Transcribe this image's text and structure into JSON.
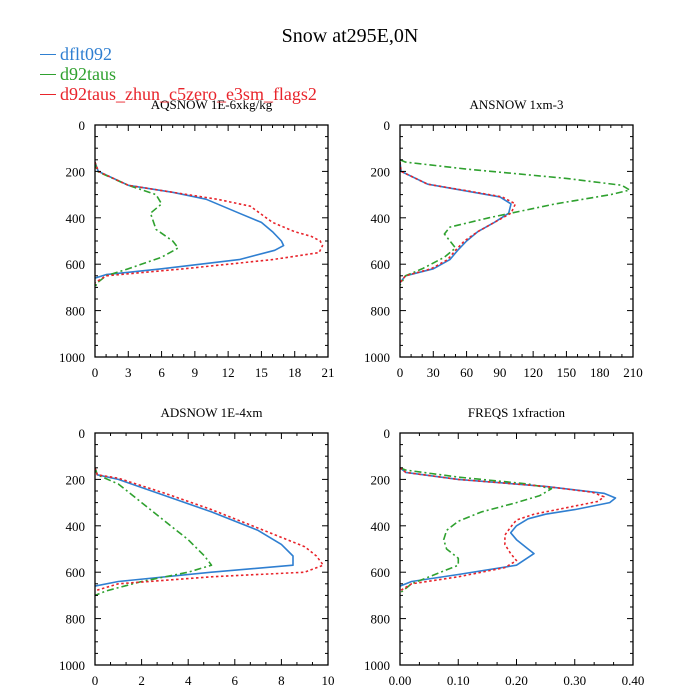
{
  "figure_title": "Snow at295E,0N",
  "colors": {
    "axis": "#000000",
    "s1": "#2f7fd1",
    "s2": "#2fa12f",
    "s3": "#e8242b"
  },
  "legend": [
    {
      "label": "dflt092",
      "color": "#2f7fd1"
    },
    {
      "label": "d92taus",
      "color": "#2fa12f"
    },
    {
      "label": "d92taus_zhun_c5zero_e3sm_flags2",
      "color": "#e8242b"
    }
  ],
  "chart_data": [
    {
      "type": "line",
      "title": "AQSNOW  1E-6xkg/kg",
      "xlim": [
        0,
        21
      ],
      "ylim": [
        0,
        1000
      ],
      "y_inverted": true,
      "xticks": [
        0,
        3,
        6,
        9,
        12,
        15,
        18,
        21
      ],
      "xtick_labels": [
        "0",
        "3",
        "6",
        "9",
        "12",
        "15",
        "18",
        "21"
      ],
      "yticks": [
        0,
        200,
        400,
        600,
        800,
        1000
      ],
      "ytick_labels": [
        "0",
        "200",
        "400",
        "600",
        "800",
        "1000"
      ],
      "series": [
        {
          "name": "dflt092",
          "style": "solid",
          "x": [
            0,
            0.3,
            3,
            7,
            10,
            13,
            15,
            16,
            16.8,
            17,
            16.2,
            13,
            6,
            1,
            0
          ],
          "y": [
            160,
            200,
            260,
            290,
            320,
            380,
            420,
            460,
            500,
            520,
            540,
            580,
            620,
            645,
            660
          ]
        },
        {
          "name": "d92taus",
          "style": "dashdot",
          "x": [
            0,
            0.2,
            3,
            5.5,
            6,
            5,
            5.5,
            7,
            7.5,
            6,
            3,
            1,
            0.2,
            0
          ],
          "y": [
            160,
            200,
            260,
            300,
            340,
            380,
            450,
            500,
            530,
            570,
            620,
            650,
            680,
            700
          ]
        },
        {
          "name": "d92taus_zhun_c5zero_e3sm_flags2",
          "style": "dotted",
          "x": [
            0,
            0.3,
            3,
            7,
            11,
            14,
            16,
            18,
            19.5,
            20.3,
            20.5,
            20.2,
            16,
            8,
            1,
            0
          ],
          "y": [
            160,
            200,
            260,
            290,
            320,
            350,
            420,
            460,
            480,
            500,
            520,
            550,
            580,
            620,
            650,
            680
          ]
        }
      ]
    },
    {
      "type": "line",
      "title": "ANSNOW  1xm-3",
      "xlim": [
        0,
        210
      ],
      "ylim": [
        0,
        1000
      ],
      "y_inverted": true,
      "xticks": [
        0,
        30,
        60,
        90,
        120,
        150,
        180,
        210
      ],
      "xtick_labels": [
        "0",
        "30",
        "60",
        "90",
        "120",
        "150",
        "180",
        "210"
      ],
      "yticks": [
        0,
        200,
        400,
        600,
        800,
        1000
      ],
      "ytick_labels": [
        "0",
        "200",
        "400",
        "600",
        "800",
        "1000"
      ],
      "series": [
        {
          "name": "dflt092",
          "style": "solid",
          "x": [
            0,
            1,
            25,
            60,
            90,
            100,
            98,
            85,
            70,
            60,
            52,
            45,
            30,
            5,
            0
          ],
          "y": [
            160,
            200,
            255,
            285,
            310,
            340,
            380,
            420,
            460,
            500,
            540,
            580,
            620,
            650,
            680
          ]
        },
        {
          "name": "d92taus",
          "style": "dashdot",
          "x": [
            0,
            5,
            60,
            150,
            200,
            207,
            190,
            140,
            80,
            45,
            40,
            50,
            40,
            20,
            5,
            0
          ],
          "y": [
            150,
            160,
            190,
            230,
            260,
            280,
            300,
            340,
            400,
            440,
            470,
            530,
            570,
            620,
            650,
            690
          ]
        },
        {
          "name": "d92taus_zhun_c5zero_e3sm_flags2",
          "style": "dotted",
          "x": [
            0,
            1,
            25,
            62,
            92,
            104,
            100,
            85,
            70,
            58,
            50,
            43,
            28,
            5,
            0
          ],
          "y": [
            160,
            200,
            255,
            285,
            310,
            340,
            380,
            420,
            460,
            500,
            540,
            580,
            620,
            650,
            680
          ]
        }
      ]
    },
    {
      "type": "line",
      "title": "ADSNOW  1E-4xm",
      "xlim": [
        0,
        10
      ],
      "ylim": [
        0,
        1000
      ],
      "y_inverted": true,
      "xticks": [
        0,
        2,
        4,
        6,
        8,
        10
      ],
      "xtick_labels": [
        "0",
        "2",
        "4",
        "6",
        "8",
        "10"
      ],
      "yticks": [
        0,
        200,
        400,
        600,
        800,
        1000
      ],
      "ytick_labels": [
        "0",
        "200",
        "400",
        "600",
        "800",
        "1000"
      ],
      "series": [
        {
          "name": "dflt092",
          "style": "solid",
          "x": [
            0,
            0.1,
            1,
            3,
            5,
            7,
            8,
            8.5,
            8.5,
            5,
            1,
            0
          ],
          "y": [
            150,
            180,
            200,
            270,
            340,
            420,
            480,
            530,
            570,
            600,
            640,
            660
          ]
        },
        {
          "name": "d92taus",
          "style": "dashdot",
          "x": [
            0,
            0.1,
            1,
            2,
            3,
            4,
            4.7,
            5,
            4,
            2,
            0.5,
            0
          ],
          "y": [
            150,
            180,
            220,
            300,
            380,
            460,
            530,
            570,
            600,
            640,
            680,
            700
          ]
        },
        {
          "name": "d92taus_zhun_c5zero_e3sm_flags2",
          "style": "dotted",
          "x": [
            0,
            0.1,
            1,
            3,
            5,
            7,
            9,
            9.5,
            9.8,
            9,
            5,
            1,
            0
          ],
          "y": [
            150,
            180,
            195,
            260,
            330,
            410,
            490,
            530,
            570,
            600,
            620,
            650,
            680
          ]
        }
      ]
    },
    {
      "type": "line",
      "title": "FREQS  1xfraction",
      "xlim": [
        0,
        0.4
      ],
      "ylim": [
        0,
        1000
      ],
      "y_inverted": true,
      "xticks": [
        0,
        0.1,
        0.2,
        0.3,
        0.4
      ],
      "xtick_labels": [
        "0.00",
        "0.10",
        "0.20",
        "0.30",
        "0.40"
      ],
      "yticks": [
        0,
        200,
        400,
        600,
        800,
        1000
      ],
      "ytick_labels": [
        "0",
        "200",
        "400",
        "600",
        "800",
        "1000"
      ],
      "series": [
        {
          "name": "dflt092",
          "style": "solid",
          "x": [
            0,
            0.01,
            0.1,
            0.25,
            0.35,
            0.37,
            0.36,
            0.3,
            0.25,
            0.22,
            0.2,
            0.19,
            0.2,
            0.22,
            0.23,
            0.2,
            0.1,
            0.02,
            0
          ],
          "y": [
            150,
            170,
            200,
            230,
            260,
            280,
            300,
            330,
            350,
            370,
            400,
            430,
            460,
            500,
            520,
            570,
            610,
            640,
            660
          ]
        },
        {
          "name": "d92taus",
          "style": "dashdot",
          "x": [
            0,
            0.01,
            0.1,
            0.22,
            0.26,
            0.24,
            0.2,
            0.14,
            0.1,
            0.08,
            0.075,
            0.08,
            0.1,
            0.1,
            0.06,
            0.02,
            0
          ],
          "y": [
            150,
            160,
            190,
            220,
            240,
            270,
            300,
            340,
            380,
            420,
            460,
            500,
            540,
            570,
            610,
            650,
            690
          ]
        },
        {
          "name": "d92taus_zhun_c5zero_e3sm_flags2",
          "style": "dotted",
          "x": [
            0,
            0.01,
            0.1,
            0.25,
            0.33,
            0.35,
            0.34,
            0.28,
            0.23,
            0.2,
            0.19,
            0.18,
            0.18,
            0.19,
            0.2,
            0.18,
            0.1,
            0.02,
            0
          ],
          "y": [
            150,
            170,
            200,
            230,
            255,
            275,
            295,
            325,
            350,
            375,
            405,
            440,
            480,
            520,
            550,
            580,
            620,
            650,
            680
          ]
        }
      ]
    }
  ]
}
